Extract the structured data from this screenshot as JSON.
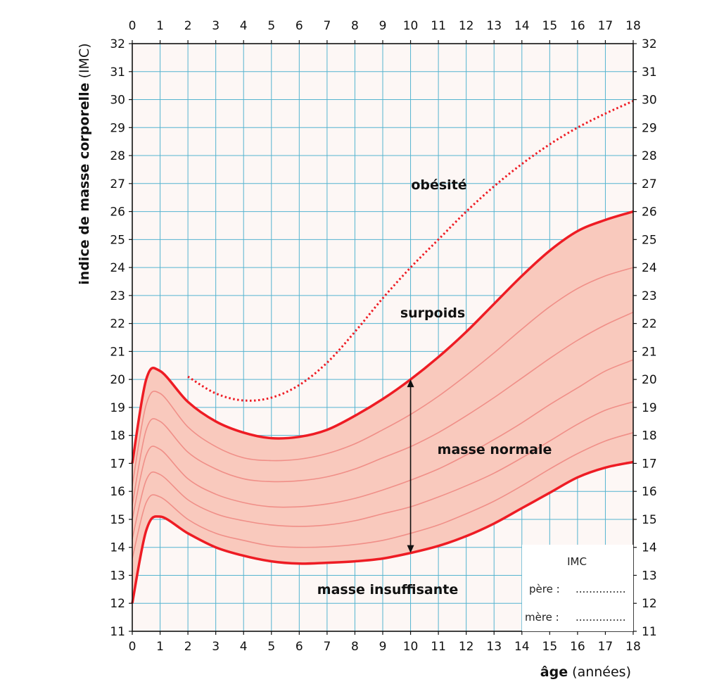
{
  "chart_data": {
    "type": "line",
    "xlabel_bold": "âge",
    "xlabel_rest": "(années)",
    "ylabel_bold": "indice de masse corporelle",
    "ylabel_rest": "(IMC)",
    "xlim": [
      0,
      18
    ],
    "ylim": [
      11,
      32
    ],
    "xticks": [
      "0",
      "1",
      "2",
      "3",
      "4",
      "5",
      "6",
      "7",
      "8",
      "9",
      "10",
      "11",
      "12",
      "13",
      "14",
      "15",
      "16",
      "17",
      "18"
    ],
    "yticks": [
      "11",
      "12",
      "13",
      "14",
      "15",
      "16",
      "17",
      "18",
      "19",
      "20",
      "21",
      "22",
      "23",
      "24",
      "25",
      "26",
      "27",
      "28",
      "29",
      "30",
      "31",
      "32"
    ],
    "grid": true,
    "region_labels": {
      "obesite": "obésité",
      "surpoids": "surpoids",
      "normale": "masse normale",
      "insuffisante": "masse insuffisante"
    },
    "upper_bound": {
      "x": [
        0,
        0.5,
        1,
        2,
        3,
        4,
        5,
        6,
        7,
        8,
        9,
        10,
        11,
        12,
        13,
        14,
        15,
        16,
        17,
        18
      ],
      "y": [
        17.0,
        20.0,
        20.3,
        19.2,
        18.5,
        18.1,
        17.9,
        17.95,
        18.2,
        18.7,
        19.3,
        20.0,
        20.8,
        21.7,
        22.7,
        23.7,
        24.6,
        25.3,
        25.7,
        26.0
      ]
    },
    "lower_bound": {
      "x": [
        0,
        0.5,
        1,
        2,
        3,
        4,
        5,
        6,
        7,
        8,
        9,
        10,
        11,
        12,
        13,
        14,
        15,
        16,
        17,
        18
      ],
      "y": [
        12.0,
        14.6,
        15.1,
        14.5,
        14.0,
        13.7,
        13.5,
        13.42,
        13.45,
        13.5,
        13.6,
        13.8,
        14.05,
        14.4,
        14.85,
        15.4,
        15.95,
        16.5,
        16.85,
        17.05
      ]
    },
    "obesity_curve": {
      "x": [
        2,
        3,
        4,
        5,
        6,
        7,
        8,
        9,
        10,
        11,
        12,
        13,
        14,
        15,
        16,
        17,
        18
      ],
      "y": [
        20.1,
        19.5,
        19.25,
        19.35,
        19.8,
        20.6,
        21.7,
        22.9,
        24.0,
        25.0,
        26.0,
        26.9,
        27.7,
        28.4,
        29.0,
        29.5,
        29.95
      ]
    },
    "percentile_curves": [
      {
        "x": [
          0,
          0.5,
          1,
          2,
          3,
          4,
          5,
          6,
          7,
          8,
          9,
          10,
          11,
          12,
          13,
          14,
          15,
          16,
          17,
          18
        ],
        "y": [
          16.2,
          19.1,
          19.5,
          18.3,
          17.6,
          17.2,
          17.1,
          17.15,
          17.35,
          17.7,
          18.2,
          18.75,
          19.4,
          20.15,
          20.95,
          21.8,
          22.6,
          23.25,
          23.7,
          24.0
        ]
      },
      {
        "x": [
          0,
          0.5,
          1,
          2,
          3,
          4,
          5,
          6,
          7,
          8,
          9,
          10,
          11,
          12,
          13,
          14,
          15,
          16,
          17,
          18
        ],
        "y": [
          15.5,
          18.2,
          18.5,
          17.4,
          16.8,
          16.45,
          16.35,
          16.38,
          16.52,
          16.8,
          17.2,
          17.6,
          18.1,
          18.7,
          19.35,
          20.05,
          20.75,
          21.4,
          21.95,
          22.4
        ]
      },
      {
        "x": [
          0,
          0.5,
          1,
          2,
          3,
          4,
          5,
          6,
          7,
          8,
          9,
          10,
          11,
          12,
          13,
          14,
          15,
          16,
          17,
          18
        ],
        "y": [
          15.0,
          17.3,
          17.5,
          16.45,
          15.9,
          15.6,
          15.45,
          15.45,
          15.55,
          15.75,
          16.05,
          16.4,
          16.8,
          17.3,
          17.85,
          18.45,
          19.1,
          19.7,
          20.3,
          20.7
        ]
      },
      {
        "x": [
          0,
          0.5,
          1,
          2,
          3,
          4,
          5,
          6,
          7,
          8,
          9,
          10,
          11,
          12,
          13,
          14,
          15,
          16,
          17,
          18
        ],
        "y": [
          14.3,
          16.4,
          16.6,
          15.7,
          15.2,
          14.95,
          14.8,
          14.75,
          14.8,
          14.95,
          15.2,
          15.45,
          15.8,
          16.2,
          16.65,
          17.2,
          17.8,
          18.4,
          18.9,
          19.2
        ]
      },
      {
        "x": [
          0,
          0.5,
          1,
          2,
          3,
          4,
          5,
          6,
          7,
          8,
          9,
          10,
          11,
          12,
          13,
          14,
          15,
          16,
          17,
          18
        ],
        "y": [
          13.6,
          15.6,
          15.8,
          15.0,
          14.5,
          14.25,
          14.05,
          14.0,
          14.02,
          14.1,
          14.25,
          14.5,
          14.8,
          15.2,
          15.65,
          16.2,
          16.8,
          17.35,
          17.8,
          18.1
        ]
      }
    ],
    "range_arrow": {
      "x": 10,
      "y_from": 13.8,
      "y_to": 20.0
    },
    "note": {
      "title": "IMC",
      "father": "père :",
      "mother": "mère :",
      "dots": "..............."
    },
    "colors": {
      "bound": "#ee1c24",
      "fill": "#f9c9bd",
      "percentile": "#f08f88",
      "obesity": "#ee1c24",
      "grid": "#55b4d0",
      "plot_background": "#fdf7f5"
    }
  }
}
